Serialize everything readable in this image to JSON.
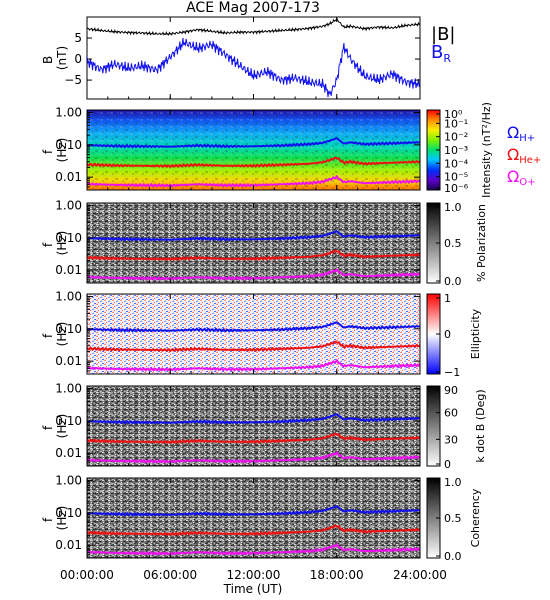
{
  "figure": {
    "title": "ACE Mag 2007-173",
    "xlabel": "Time (UT)",
    "xticks": [
      "00:00:00",
      "06:00:00",
      "12:00:00",
      "18:00:00",
      "24:00:00"
    ]
  },
  "chart_data": [
    {
      "type": "line",
      "panel": "magnetic-field",
      "ylabel": "B (nT)",
      "ylabel_lines": [
        "B",
        "(nT)"
      ],
      "ytick_labels": [
        "5",
        "0",
        "−5"
      ],
      "ytick_values": [
        5,
        0,
        -5
      ],
      "ylim": [
        -9.5,
        10
      ],
      "xlim": [
        0,
        24
      ],
      "legend": [
        {
          "label": "|B|",
          "color": "#000000"
        },
        {
          "label": "B",
          "sub": "R",
          "color": "#1010ee"
        }
      ],
      "series": [
        {
          "name": "|B|",
          "color": "#000000",
          "x": [
            0,
            1,
            2,
            3,
            4,
            5,
            6,
            7,
            8,
            9,
            10,
            11,
            12,
            13,
            14,
            15,
            16,
            17,
            17.5,
            18,
            18.5,
            19,
            20,
            21,
            22,
            23,
            24
          ],
          "y": [
            7.2,
            6.8,
            6.5,
            6.3,
            6.2,
            6.0,
            6.0,
            6.4,
            7.0,
            6.6,
            6.2,
            6.4,
            6.4,
            6.6,
            6.8,
            7.0,
            7.3,
            7.8,
            8.4,
            9.5,
            7.6,
            7.8,
            7.2,
            7.6,
            7.4,
            8.0,
            8.3
          ]
        },
        {
          "name": "B_R",
          "color": "#1010ee",
          "x": [
            0,
            1,
            2,
            3,
            4,
            5,
            6,
            7,
            8,
            9,
            10,
            11,
            12,
            13,
            14,
            15,
            16,
            17,
            17.5,
            18,
            18.5,
            19,
            20,
            21,
            22,
            23,
            24
          ],
          "y": [
            -0.5,
            -2.5,
            -1.2,
            -2.2,
            -1.6,
            -2.6,
            0.5,
            4.0,
            2.5,
            3.5,
            1.0,
            -1.5,
            -4.0,
            -3.0,
            -5.0,
            -4.5,
            -5.5,
            -6.0,
            -8.5,
            -5.0,
            3.0,
            0.0,
            -4.0,
            -5.0,
            -3.5,
            -5.5,
            -6.0
          ]
        }
      ]
    },
    {
      "type": "heatmap",
      "panel": "power-spectral-density",
      "ylabel": "f (Hz)",
      "ytick_labels": [
        "1.00",
        "0.10",
        "0.01"
      ],
      "ytick_values": [
        1.0,
        0.1,
        0.01
      ],
      "ylim": [
        0.004,
        1.2
      ],
      "yscale": "log",
      "colorbar_label": "Intensity (nT²/Hz)",
      "colorbar_ticks": [
        "10⁰",
        "10⁻¹",
        "10⁻²",
        "10⁻³",
        "10⁻⁴",
        "10⁻⁵",
        "10⁻⁶"
      ],
      "colorbar_range": [
        -6.5,
        0
      ],
      "colormap": "rainbow",
      "legend": [
        {
          "label": "Ω",
          "sub": "H+",
          "color": "#1010ee"
        },
        {
          "label": "Ω",
          "sub": "He+",
          "color": "#ee1010"
        },
        {
          "label": "Ω",
          "sub": "O+",
          "color": "#ee10ee"
        }
      ]
    },
    {
      "type": "heatmap",
      "panel": "polarization",
      "ylabel": "f (Hz)",
      "ytick_labels": [
        "1.00",
        "0.10",
        "0.01"
      ],
      "colorbar_label": "% Polarization",
      "colorbar_ticks": [
        "1.0",
        "0.5",
        "0.0"
      ],
      "colorbar_range": [
        0,
        1
      ],
      "colormap": "gray"
    },
    {
      "type": "heatmap",
      "panel": "ellipticity",
      "ylabel": "f (Hz)",
      "ytick_labels": [
        "1.00",
        "0.10",
        "0.01"
      ],
      "colorbar_label": "Ellipticity",
      "colorbar_ticks": [
        "1",
        "0",
        "−1"
      ],
      "colorbar_range": [
        -1,
        1
      ],
      "colormap": "blue-white-red"
    },
    {
      "type": "heatmap",
      "panel": "wave-normal-angle",
      "ylabel": "f (Hz)",
      "ytick_labels": [
        "1.00",
        "0.10",
        "0.01"
      ],
      "colorbar_label": "k dot B (Deg)",
      "colorbar_ticks": [
        "90",
        "60",
        "30",
        "0"
      ],
      "colorbar_range": [
        0,
        90
      ],
      "colormap": "gray"
    },
    {
      "type": "heatmap",
      "panel": "coherency",
      "ylabel": "f (Hz)",
      "ytick_labels": [
        "1.00",
        "0.10",
        "0.01"
      ],
      "colorbar_label": "Coherency",
      "colorbar_ticks": [
        "1.0",
        "0.5",
        "0.0"
      ],
      "colorbar_range": [
        0,
        1
      ],
      "colormap": "gray"
    }
  ],
  "gyrofrequency_lines": [
    {
      "name": "Ω_H+",
      "color": "#1010ee",
      "x": [
        0,
        2,
        4,
        6,
        8,
        10,
        12,
        14,
        16,
        17,
        17.5,
        18,
        18.5,
        19,
        20,
        22,
        24
      ],
      "y": [
        0.098,
        0.092,
        0.09,
        0.088,
        0.095,
        0.09,
        0.09,
        0.095,
        0.105,
        0.115,
        0.135,
        0.16,
        0.11,
        0.12,
        0.105,
        0.112,
        0.12
      ]
    },
    {
      "name": "Ω_He+",
      "color": "#ee1010",
      "x": [
        0,
        2,
        4,
        6,
        8,
        10,
        12,
        14,
        16,
        17,
        17.5,
        18,
        18.5,
        19,
        20,
        22,
        24
      ],
      "y": [
        0.0245,
        0.023,
        0.0225,
        0.022,
        0.024,
        0.0225,
        0.0225,
        0.024,
        0.026,
        0.029,
        0.034,
        0.04,
        0.028,
        0.03,
        0.026,
        0.028,
        0.03
      ]
    },
    {
      "name": "Ω_O+",
      "color": "#ee10ee",
      "x": [
        0,
        2,
        4,
        6,
        8,
        10,
        12,
        14,
        16,
        17,
        17.5,
        18,
        18.5,
        19,
        20,
        22,
        24
      ],
      "y": [
        0.0061,
        0.0058,
        0.0056,
        0.0055,
        0.006,
        0.0056,
        0.0056,
        0.006,
        0.0065,
        0.0072,
        0.0085,
        0.01,
        0.007,
        0.0075,
        0.0065,
        0.007,
        0.0075
      ]
    }
  ]
}
